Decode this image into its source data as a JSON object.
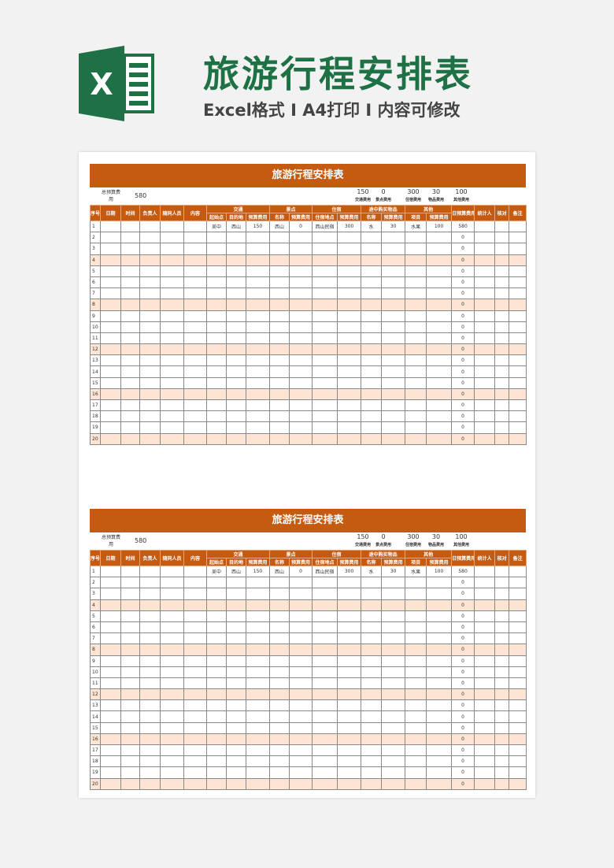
{
  "header": {
    "title": "旅游行程安排表",
    "subtitle": "Excel格式 I A4打印 I 内容可修改",
    "logo_letter": "X"
  },
  "colors": {
    "accent": "#c55a11",
    "highlight_row": "#fde4d3",
    "brand_green": "#1e7145"
  },
  "sheet": {
    "title": "旅游行程安排表",
    "budget_label": "总预算费用",
    "budget_value": "580",
    "summary": [
      {
        "v": "150",
        "l": "交通费用"
      },
      {
        "v": "0",
        "l": "景点费用"
      },
      {
        "v": "300",
        "l": "住宿费用"
      },
      {
        "v": "30",
        "l": "物品费用"
      },
      {
        "v": "100",
        "l": "其他费用"
      }
    ],
    "headers_top": [
      "序号",
      "日期",
      "时间",
      "负责人",
      "随同人员",
      "内容",
      "交通",
      "景点",
      "住宿",
      "途中购买物品",
      "其他",
      "日预算费用",
      "统计人",
      "核对",
      "备注"
    ],
    "headers_sub": [
      "起始点",
      "目的地",
      "预算费用",
      "名称",
      "预算费用",
      "住宿地点",
      "预算费用",
      "名称",
      "预算费用",
      "项目",
      "预算费用"
    ],
    "rows": [
      [
        "1",
        "",
        "",
        "",
        "",
        "",
        "吴中",
        "西山",
        "150",
        "西山",
        "0",
        "西山民宿",
        "300",
        "水",
        "30",
        "水果",
        "100",
        "580",
        "",
        "",
        ""
      ],
      [
        "2",
        "",
        "",
        "",
        "",
        "",
        "",
        "",
        "",
        "",
        "",
        "",
        "",
        "",
        "",
        "",
        "",
        "0",
        "",
        "",
        ""
      ],
      [
        "3",
        "",
        "",
        "",
        "",
        "",
        "",
        "",
        "",
        "",
        "",
        "",
        "",
        "",
        "",
        "",
        "",
        "0",
        "",
        "",
        ""
      ],
      [
        "4",
        "",
        "",
        "",
        "",
        "",
        "",
        "",
        "",
        "",
        "",
        "",
        "",
        "",
        "",
        "",
        "",
        "0",
        "",
        "",
        ""
      ],
      [
        "5",
        "",
        "",
        "",
        "",
        "",
        "",
        "",
        "",
        "",
        "",
        "",
        "",
        "",
        "",
        "",
        "",
        "0",
        "",
        "",
        ""
      ],
      [
        "6",
        "",
        "",
        "",
        "",
        "",
        "",
        "",
        "",
        "",
        "",
        "",
        "",
        "",
        "",
        "",
        "",
        "0",
        "",
        "",
        ""
      ],
      [
        "7",
        "",
        "",
        "",
        "",
        "",
        "",
        "",
        "",
        "",
        "",
        "",
        "",
        "",
        "",
        "",
        "",
        "0",
        "",
        "",
        ""
      ],
      [
        "8",
        "",
        "",
        "",
        "",
        "",
        "",
        "",
        "",
        "",
        "",
        "",
        "",
        "",
        "",
        "",
        "",
        "0",
        "",
        "",
        ""
      ],
      [
        "9",
        "",
        "",
        "",
        "",
        "",
        "",
        "",
        "",
        "",
        "",
        "",
        "",
        "",
        "",
        "",
        "",
        "0",
        "",
        "",
        ""
      ],
      [
        "10",
        "",
        "",
        "",
        "",
        "",
        "",
        "",
        "",
        "",
        "",
        "",
        "",
        "",
        "",
        "",
        "",
        "0",
        "",
        "",
        ""
      ],
      [
        "11",
        "",
        "",
        "",
        "",
        "",
        "",
        "",
        "",
        "",
        "",
        "",
        "",
        "",
        "",
        "",
        "",
        "0",
        "",
        "",
        ""
      ],
      [
        "12",
        "",
        "",
        "",
        "",
        "",
        "",
        "",
        "",
        "",
        "",
        "",
        "",
        "",
        "",
        "",
        "",
        "0",
        "",
        "",
        ""
      ],
      [
        "13",
        "",
        "",
        "",
        "",
        "",
        "",
        "",
        "",
        "",
        "",
        "",
        "",
        "",
        "",
        "",
        "",
        "0",
        "",
        "",
        ""
      ],
      [
        "14",
        "",
        "",
        "",
        "",
        "",
        "",
        "",
        "",
        "",
        "",
        "",
        "",
        "",
        "",
        "",
        "",
        "0",
        "",
        "",
        ""
      ],
      [
        "15",
        "",
        "",
        "",
        "",
        "",
        "",
        "",
        "",
        "",
        "",
        "",
        "",
        "",
        "",
        "",
        "",
        "0",
        "",
        "",
        ""
      ],
      [
        "16",
        "",
        "",
        "",
        "",
        "",
        "",
        "",
        "",
        "",
        "",
        "",
        "",
        "",
        "",
        "",
        "",
        "0",
        "",
        "",
        ""
      ],
      [
        "17",
        "",
        "",
        "",
        "",
        "",
        "",
        "",
        "",
        "",
        "",
        "",
        "",
        "",
        "",
        "",
        "",
        "0",
        "",
        "",
        ""
      ],
      [
        "18",
        "",
        "",
        "",
        "",
        "",
        "",
        "",
        "",
        "",
        "",
        "",
        "",
        "",
        "",
        "",
        "",
        "0",
        "",
        "",
        ""
      ],
      [
        "19",
        "",
        "",
        "",
        "",
        "",
        "",
        "",
        "",
        "",
        "",
        "",
        "",
        "",
        "",
        "",
        "",
        "0",
        "",
        "",
        ""
      ],
      [
        "20",
        "",
        "",
        "",
        "",
        "",
        "",
        "",
        "",
        "",
        "",
        "",
        "",
        "",
        "",
        "",
        "",
        "0",
        "",
        "",
        ""
      ]
    ]
  }
}
